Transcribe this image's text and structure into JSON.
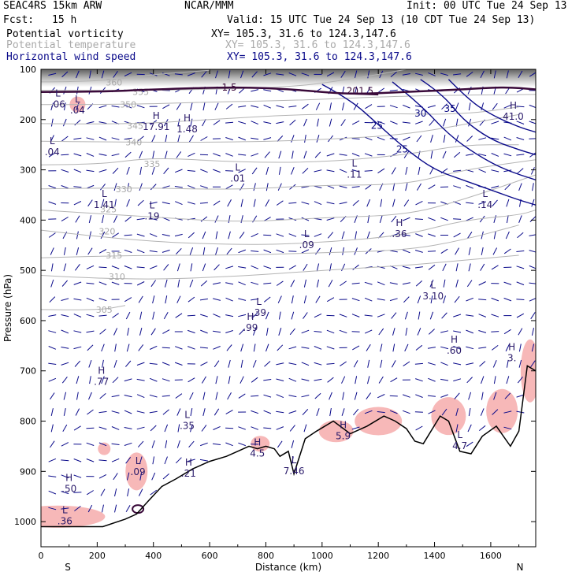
{
  "header": {
    "model": "SEAC4RS 15km ARW",
    "center": "NCAR/MMM",
    "init": "Init: 00 UTC Tue 24 Sep 13",
    "fcst_label": "Fcst:",
    "fcst_value": "15 h",
    "valid": "Valid: 15 UTC Tue 24 Sep 13 (10 CDT Tue 24 Sep 13)",
    "fields": [
      {
        "name": "Potential vorticity",
        "xy": "XY= 105.3, 31.6 to 124.3,147.6",
        "color": "#000000"
      },
      {
        "name": "Potential temperature",
        "xy": "XY= 105.3, 31.6 to 124.3,147.6",
        "color": "#aaaaaa"
      },
      {
        "name": "Horizontal wind speed",
        "xy": "XY= 105.3, 31.6 to 124.3,147.6",
        "color": "#0a0a8a"
      }
    ]
  },
  "chart_data": {
    "type": "cross-section",
    "xlabel": "Distance (km)",
    "ylabel": "Pressure (hPa)",
    "xlim": [
      0,
      1760
    ],
    "ylim": [
      1050,
      100
    ],
    "x_ticks": [
      0,
      200,
      400,
      600,
      800,
      1000,
      1200,
      1400,
      1600
    ],
    "y_ticks": [
      100,
      200,
      300,
      400,
      500,
      600,
      700,
      800,
      900,
      1000
    ],
    "end_labels": {
      "left": "S",
      "right": "N"
    },
    "colors": {
      "theta": "#b4b4b4",
      "wind": "#0a0a8a",
      "pv": "#3a0a3a",
      "pv_fill": "#f6b0b0",
      "terrain": "#000000",
      "barb": "#0a0a8a"
    },
    "terrain": [
      [
        0,
        1010
      ],
      [
        220,
        1010
      ],
      [
        300,
        995
      ],
      [
        340,
        985
      ],
      [
        380,
        960
      ],
      [
        430,
        930
      ],
      [
        480,
        915
      ],
      [
        540,
        895
      ],
      [
        600,
        880
      ],
      [
        660,
        870
      ],
      [
        700,
        860
      ],
      [
        740,
        850
      ],
      [
        770,
        855
      ],
      [
        800,
        850
      ],
      [
        830,
        855
      ],
      [
        850,
        870
      ],
      [
        880,
        860
      ],
      [
        900,
        905
      ],
      [
        940,
        835
      ],
      [
        980,
        820
      ],
      [
        1040,
        800
      ],
      [
        1100,
        825
      ],
      [
        1160,
        810
      ],
      [
        1220,
        790
      ],
      [
        1260,
        800
      ],
      [
        1300,
        815
      ],
      [
        1330,
        840
      ],
      [
        1360,
        845
      ],
      [
        1420,
        790
      ],
      [
        1450,
        800
      ],
      [
        1490,
        860
      ],
      [
        1530,
        865
      ],
      [
        1570,
        830
      ],
      [
        1620,
        810
      ],
      [
        1670,
        850
      ],
      [
        1700,
        820
      ],
      [
        1730,
        690
      ],
      [
        1760,
        700
      ]
    ],
    "theta_contours": [
      {
        "label": "360",
        "points": [
          [
            0,
            125
          ],
          [
            200,
            125
          ],
          [
            400,
            110
          ],
          [
            600,
            102
          ]
        ],
        "label_at": [
          260,
          126
        ]
      },
      {
        "label": "355",
        "points": [
          [
            0,
            142
          ],
          [
            300,
            142
          ],
          [
            600,
            140
          ],
          [
            900,
            135
          ],
          [
            1100,
            120
          ],
          [
            1300,
            100
          ]
        ],
        "label_at": [
          355,
          145
        ]
      },
      {
        "label": "350",
        "points": [
          [
            0,
            170
          ],
          [
            300,
            170
          ],
          [
            600,
            165
          ],
          [
            900,
            162
          ],
          [
            1200,
            155
          ],
          [
            1400,
            152
          ],
          [
            1760,
            150
          ]
        ],
        "label_at": [
          310,
          170
        ]
      },
      {
        "label": "345",
        "points": [
          [
            0,
            208
          ],
          [
            300,
            210
          ],
          [
            600,
            200
          ],
          [
            900,
            190
          ],
          [
            1200,
            188
          ],
          [
            1500,
            190
          ],
          [
            1700,
            175
          ]
        ],
        "label_at": [
          335,
          212
        ]
      },
      {
        "label": "340",
        "points": [
          [
            0,
            243
          ],
          [
            300,
            245
          ],
          [
            700,
            245
          ],
          [
            1000,
            240
          ],
          [
            1300,
            230
          ],
          [
            1550,
            205
          ],
          [
            1700,
            190
          ]
        ],
        "label_at": [
          330,
          245
        ]
      },
      {
        "label": "335",
        "points": [
          [
            0,
            290
          ],
          [
            200,
            290
          ],
          [
            400,
            275
          ],
          [
            700,
            285
          ],
          [
            1000,
            285
          ],
          [
            1300,
            270
          ],
          [
            1500,
            250
          ],
          [
            1700,
            250
          ]
        ],
        "label_at": [
          395,
          288
        ]
      },
      {
        "label": "330",
        "points": [
          [
            0,
            338
          ],
          [
            300,
            335
          ],
          [
            700,
            340
          ],
          [
            1000,
            330
          ],
          [
            1300,
            330
          ],
          [
            1500,
            300
          ],
          [
            1760,
            280
          ]
        ],
        "label_at": [
          295,
          338
        ]
      },
      {
        "label": "325",
        "points": [
          [
            0,
            380
          ],
          [
            300,
            390
          ],
          [
            700,
            405
          ],
          [
            1000,
            395
          ],
          [
            1300,
            390
          ],
          [
            1500,
            360
          ],
          [
            1760,
            310
          ]
        ],
        "label_at": [
          240,
          378
        ]
      },
      {
        "label": "320",
        "points": [
          [
            0,
            420
          ],
          [
            300,
            440
          ],
          [
            700,
            450
          ],
          [
            1000,
            445
          ],
          [
            1300,
            430
          ],
          [
            1500,
            400
          ],
          [
            1700,
            390
          ],
          [
            1760,
            380
          ]
        ],
        "label_at": [
          235,
          422
        ]
      },
      {
        "label": "315",
        "points": [
          [
            0,
            475
          ],
          [
            300,
            470
          ],
          [
            700,
            470
          ],
          [
            1000,
            465
          ],
          [
            1300,
            460
          ],
          [
            1500,
            440
          ],
          [
            1700,
            410
          ]
        ],
        "label_at": [
          260,
          470
        ]
      },
      {
        "label": "310",
        "points": [
          [
            0,
            510
          ],
          [
            300,
            520
          ],
          [
            700,
            512
          ],
          [
            1000,
            500
          ],
          [
            1300,
            490
          ],
          [
            1500,
            480
          ],
          [
            1700,
            470
          ]
        ],
        "label_at": [
          270,
          512
        ]
      },
      {
        "label": "305",
        "points": [
          [
            0,
            578
          ],
          [
            200,
            580
          ],
          [
            300,
            570
          ]
        ],
        "label_at": [
          225,
          578
        ]
      }
    ],
    "wind_contours": [
      {
        "label": "25",
        "points": [
          [
            1000,
            130
          ],
          [
            1100,
            160
          ],
          [
            1200,
            210
          ],
          [
            1300,
            260
          ],
          [
            1400,
            300
          ],
          [
            1500,
            320
          ],
          [
            1600,
            340
          ],
          [
            1700,
            360
          ],
          [
            1760,
            370
          ]
        ],
        "label_at": [
          1195,
          212
        ]
      },
      {
        "label": "25",
        "points": [
          [
            1250,
            125
          ],
          [
            1350,
            170
          ],
          [
            1450,
            230
          ],
          [
            1550,
            270
          ],
          [
            1650,
            300
          ],
          [
            1760,
            320
          ]
        ],
        "label_at": [
          1285,
          259
        ]
      },
      {
        "label": "30",
        "points": [
          [
            1350,
            120
          ],
          [
            1430,
            150
          ],
          [
            1500,
            200
          ],
          [
            1600,
            240
          ],
          [
            1700,
            260
          ],
          [
            1760,
            270
          ]
        ],
        "label_at": [
          1350,
          188
        ]
      },
      {
        "label": "35",
        "points": [
          [
            1450,
            120
          ],
          [
            1520,
            160
          ],
          [
            1600,
            190
          ],
          [
            1700,
            215
          ],
          [
            1760,
            225
          ]
        ],
        "label_at": [
          1455,
          178
        ]
      }
    ],
    "pv_contours": [
      {
        "label": "1.5",
        "points": [
          [
            0,
            145
          ],
          [
            200,
            145
          ],
          [
            400,
            140
          ],
          [
            700,
            135
          ],
          [
            900,
            140
          ],
          [
            1100,
            150
          ],
          [
            1300,
            145
          ],
          [
            1500,
            140
          ],
          [
            1650,
            135
          ],
          [
            1760,
            140
          ]
        ],
        "label_at": [
          670,
          136
        ]
      },
      {
        "label": "201.5",
        "points": [
          [
            1100,
            148
          ],
          [
            1200,
            150
          ]
        ],
        "label_at": [
          1135,
          143
        ]
      }
    ],
    "extrema": [
      {
        "type": "L",
        "value": ".06",
        "x": 60,
        "p": 160
      },
      {
        "type": "L",
        "value": ".04",
        "x": 130,
        "p": 172
      },
      {
        "type": "H",
        "value": "17.91",
        "x": 410,
        "p": 205
      },
      {
        "type": "H",
        "value": "1.48",
        "x": 520,
        "p": 210
      },
      {
        "type": "L",
        "value": ".04",
        "x": 40,
        "p": 255
      },
      {
        "type": "L",
        "value": ".01",
        "x": 700,
        "p": 308
      },
      {
        "type": "L",
        "value": "1.41",
        "x": 225,
        "p": 360
      },
      {
        "type": "L",
        "value": ".19",
        "x": 395,
        "p": 383
      },
      {
        "type": "L",
        "value": ".11",
        "x": 1115,
        "p": 300
      },
      {
        "type": "L",
        "value": ".14",
        "x": 1580,
        "p": 360
      },
      {
        "type": "H",
        "value": "41.0",
        "x": 1680,
        "p": 185
      },
      {
        "type": "L",
        "value": ".09",
        "x": 945,
        "p": 440
      },
      {
        "type": "H",
        "value": ".36",
        "x": 1275,
        "p": 418
      },
      {
        "type": "L",
        "value": "3.10",
        "x": 1395,
        "p": 542
      },
      {
        "type": "L",
        "value": ".39",
        "x": 775,
        "p": 575
      },
      {
        "type": "H",
        "value": ".99",
        "x": 745,
        "p": 605
      },
      {
        "type": "H",
        "value": ".60",
        "x": 1470,
        "p": 650
      },
      {
        "type": "H",
        "value": "3.",
        "x": 1675,
        "p": 665
      },
      {
        "type": "H",
        "value": ".77",
        "x": 215,
        "p": 712
      },
      {
        "type": "L",
        "value": ".35",
        "x": 520,
        "p": 800
      },
      {
        "type": "H",
        "value": "4.5",
        "x": 770,
        "p": 855
      },
      {
        "type": "L",
        "value": "7.46",
        "x": 900,
        "p": 890
      },
      {
        "type": "H",
        "value": "5.9",
        "x": 1075,
        "p": 820
      },
      {
        "type": "L",
        "value": "4.7",
        "x": 1490,
        "p": 840
      },
      {
        "type": "H",
        "value": ".21",
        "x": 525,
        "p": 895
      },
      {
        "type": "L",
        "value": ".09",
        "x": 345,
        "p": 892
      },
      {
        "type": "H",
        "value": ".50",
        "x": 100,
        "p": 925
      },
      {
        "type": "L",
        "value": ".36",
        "x": 85,
        "p": 990
      }
    ]
  }
}
